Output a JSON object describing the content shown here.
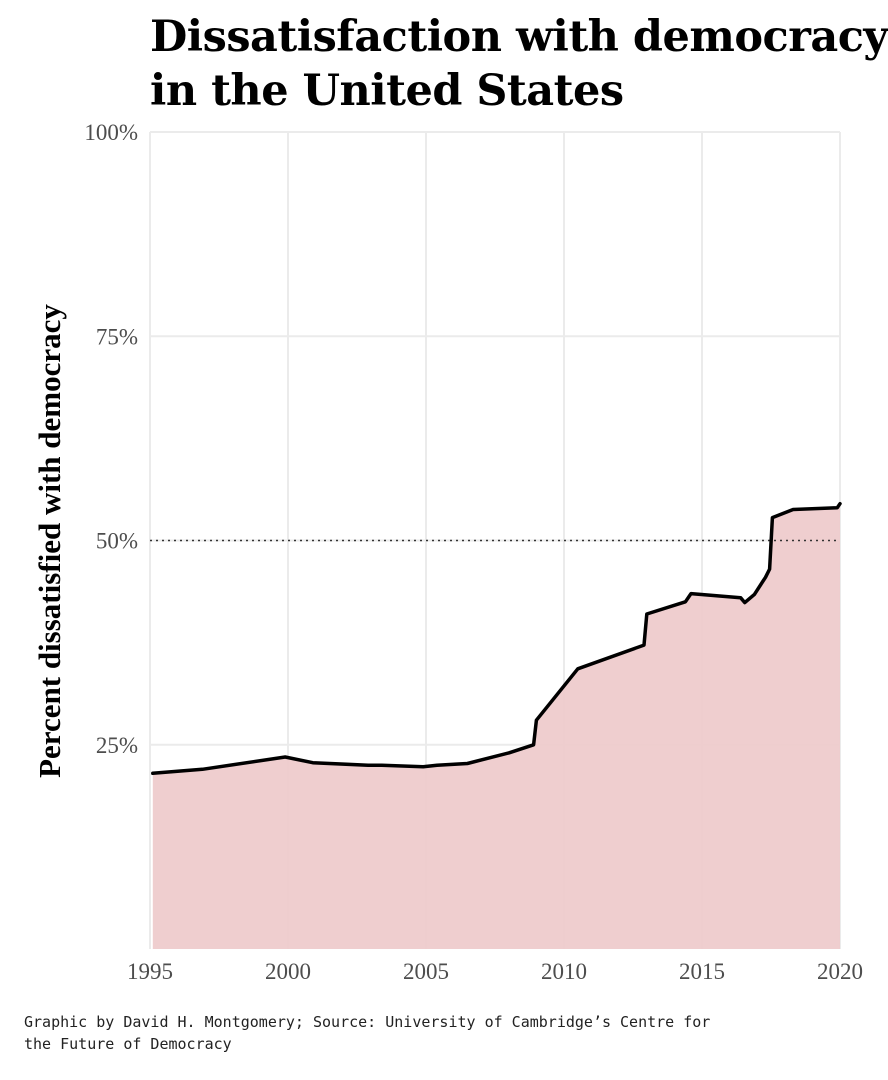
{
  "chart_data": {
    "type": "area",
    "title_lines": [
      "Dissatisfaction with democracy",
      "in the United States"
    ],
    "xlabel": "",
    "ylabel": "Percent dissatisfied with democracy",
    "xlim": [
      1995,
      2020
    ],
    "ylim": [
      0,
      100
    ],
    "x_ticks": [
      1995,
      2000,
      2005,
      2010,
      2015,
      2020
    ],
    "y_ticks": [
      25,
      50,
      75,
      100
    ],
    "y_tick_labels": [
      "25%",
      "50%",
      "75%",
      "100%"
    ],
    "reference_line": {
      "y": 50,
      "style": "dotted"
    },
    "grid": true,
    "fill_color": "#eecbcc",
    "line_color": "#000000",
    "series": [
      {
        "x": [
          1995.1,
          1996.9,
          1999.9,
          2000.9,
          2002.9,
          2003.4,
          2004.9,
          2005.4,
          2006.5,
          2008.0,
          2008.9,
          2009.0,
          2010.5,
          2012.9,
          2013.0,
          2014.4,
          2014.6,
          2016.4,
          2016.55,
          2016.9,
          2017.3,
          2017.45,
          2017.55,
          2018.3,
          2019.9,
          2020.0
        ],
        "y": [
          21.5,
          22.0,
          23.5,
          22.8,
          22.5,
          22.5,
          22.3,
          22.5,
          22.7,
          24.0,
          25.0,
          28.0,
          34.3,
          37.2,
          41.0,
          42.5,
          43.5,
          43.0,
          42.4,
          43.4,
          45.5,
          46.5,
          52.8,
          53.8,
          54.0,
          54.5
        ]
      }
    ]
  },
  "caption_lines": [
    "Graphic by David H. Montgomery; Source: University of Cambridge’s Centre for",
    "the Future of Democracy"
  ]
}
